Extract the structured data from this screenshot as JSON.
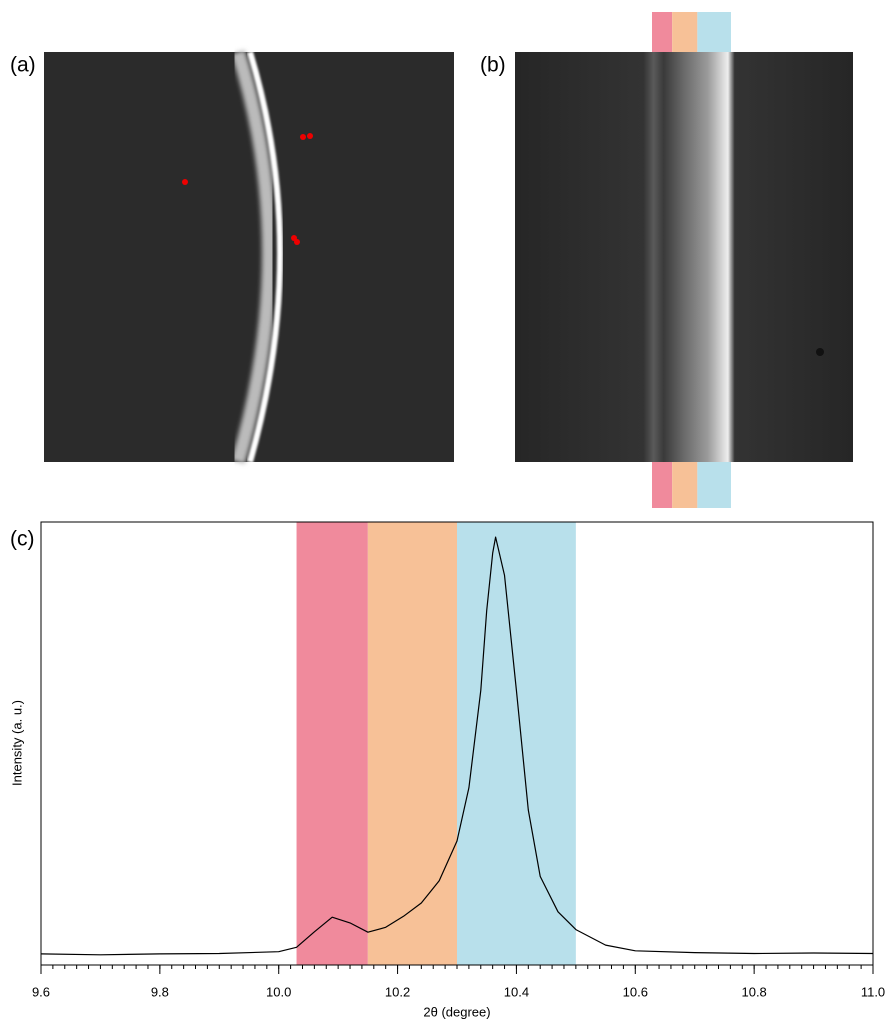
{
  "panel_labels": [
    "(a)",
    "(b)",
    "(c)"
  ],
  "chart_data": {
    "type": "line",
    "x_label": "2θ (degree)",
    "y_label": "Intensity (a. u.)",
    "x": [
      9.6,
      9.7,
      9.8,
      9.9,
      10.0,
      10.03,
      10.06,
      10.09,
      10.12,
      10.15,
      10.18,
      10.21,
      10.24,
      10.27,
      10.3,
      10.32,
      10.34,
      10.35,
      10.36,
      10.365,
      10.38,
      10.4,
      10.42,
      10.44,
      10.47,
      10.5,
      10.55,
      10.6,
      10.7,
      10.8,
      10.9,
      11.0
    ],
    "y": [
      2.5,
      2.3,
      2.5,
      2.6,
      3.0,
      4,
      7.5,
      10.8,
      9.5,
      7.4,
      8.5,
      11,
      14,
      19,
      28,
      40,
      62,
      80,
      93,
      96.6,
      88,
      62,
      35,
      20,
      12,
      8,
      4.5,
      3.2,
      2.8,
      2.6,
      2.7,
      2.6
    ],
    "color": "#000000",
    "xlim": [
      9.6,
      11.0
    ],
    "ylim": [
      0,
      100
    ],
    "xticks": [
      9.6,
      9.8,
      {
        "value": 10,
        "label": "10.0"
      },
      10.2,
      10.4,
      10.6,
      10.8,
      {
        "value": 11,
        "label": "11.0"
      }
    ],
    "xminor": 0.02,
    "bands": [
      {
        "from": 10.03,
        "to": 10.15,
        "color": "#f08a9c"
      },
      {
        "from": 10.15,
        "to": 10.3,
        "color": "#f7c197"
      },
      {
        "from": 10.3,
        "to": 10.5,
        "color": "#b8e0eb"
      }
    ]
  }
}
